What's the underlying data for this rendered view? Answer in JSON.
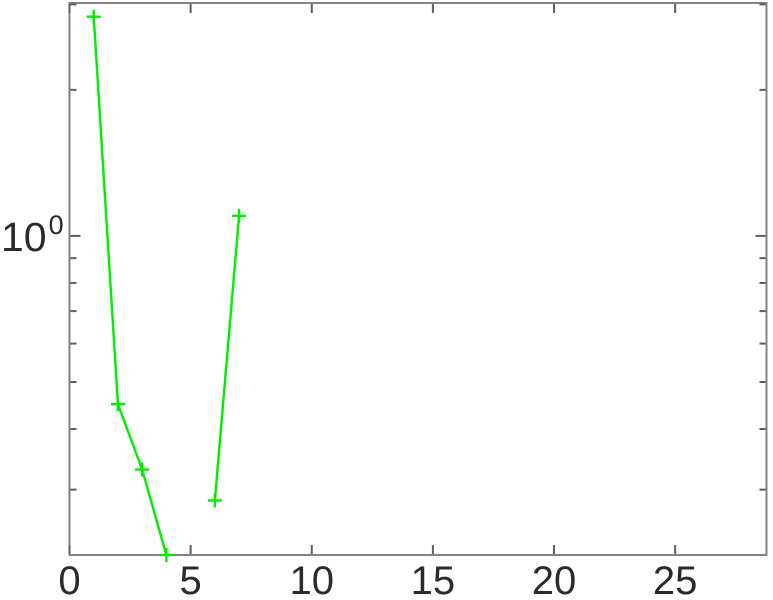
{
  "figure": {
    "background": "#ffffff",
    "axis_color": "#848484",
    "tick_color": "#5e5e5e",
    "text_color": "#2b2b2b"
  },
  "chart_data": {
    "type": "line",
    "yscale": "log",
    "title": "",
    "xlabel": "",
    "ylabel": "",
    "grid": false,
    "legend": null,
    "xlim": [
      0,
      28.77
    ],
    "ylim": [
      0.22,
      3.02
    ],
    "x_ticks": [
      0,
      5,
      10,
      15,
      20,
      25
    ],
    "y_major_ticks": [
      1
    ],
    "y_tick_label": {
      "base": "10",
      "exp": "0"
    },
    "y_minor_ticks": [
      0.3,
      0.4,
      0.5,
      0.6,
      0.7,
      0.8,
      0.9,
      2,
      3
    ],
    "series": [
      {
        "name": "green-line",
        "color": "#00ee00",
        "marker": "plus",
        "line_width": 2.4,
        "segments": [
          {
            "x": [
              1,
              2,
              3,
              4
            ],
            "y": [
              2.83,
              0.45,
              0.33,
              0.22
            ]
          },
          {
            "x": [
              6,
              7
            ],
            "y": [
              0.285,
              1.1
            ]
          }
        ]
      }
    ]
  }
}
